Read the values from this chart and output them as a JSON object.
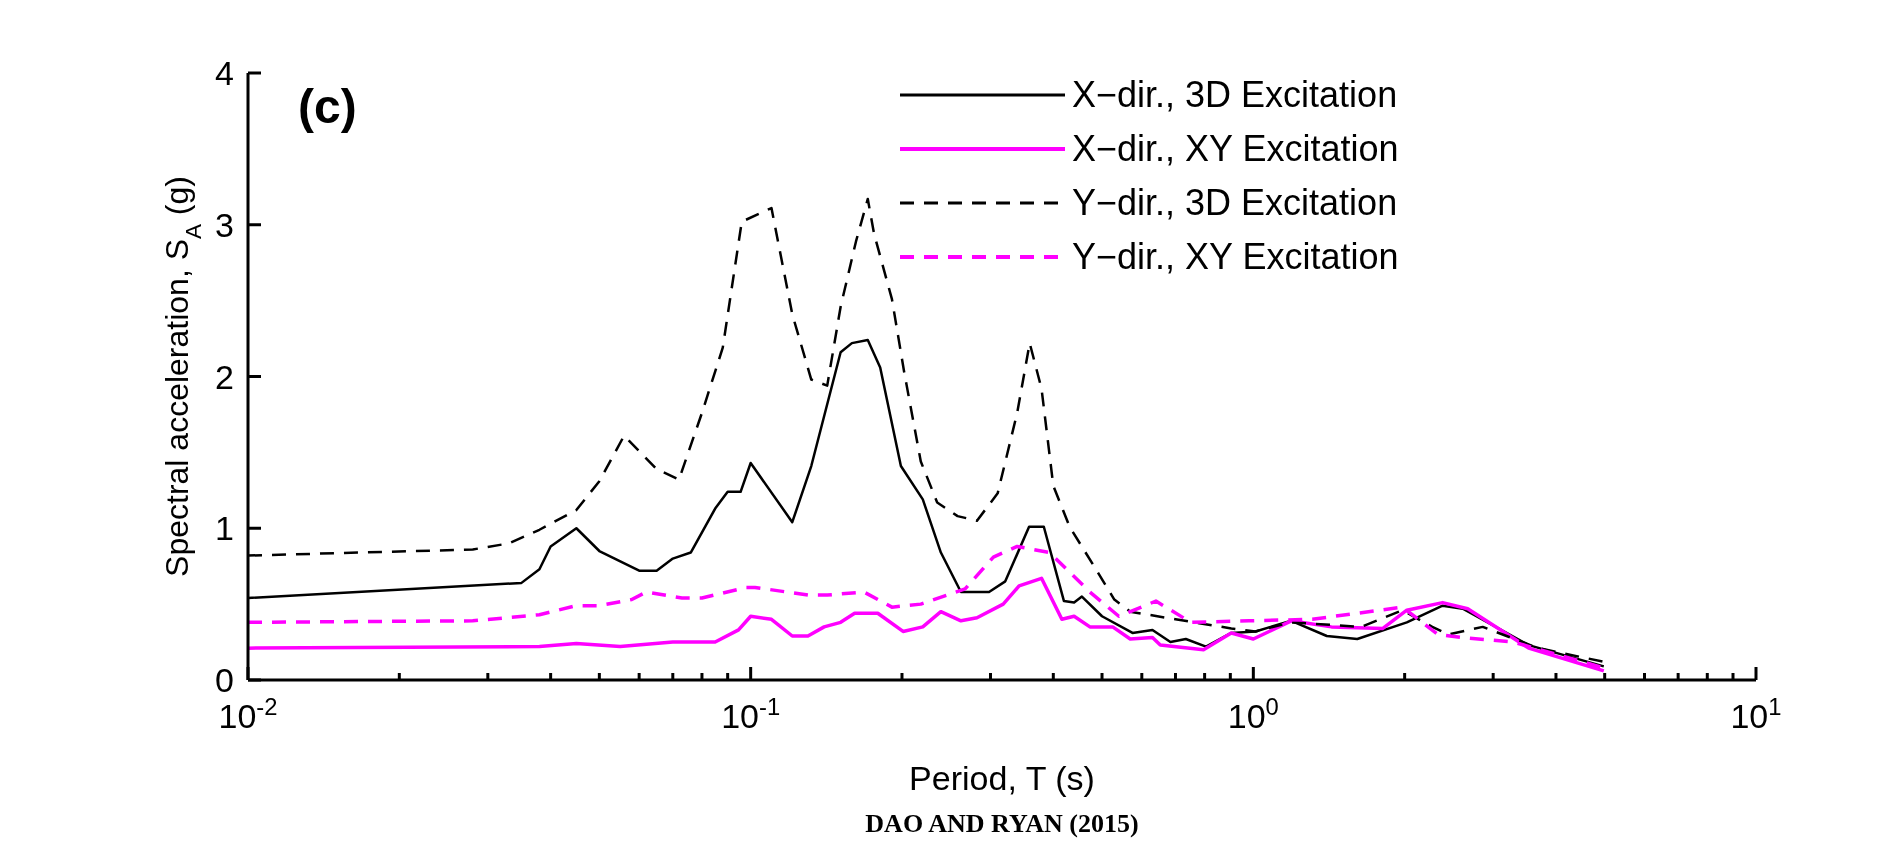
{
  "chart_data": {
    "type": "line",
    "xlabel": "Period, T (s)",
    "ylabel": "Spectral acceleration, S$_{A}$ (g)",
    "log": "x",
    "xlim": [
      0.01,
      10
    ],
    "xticks": [
      {
        "value": 0.01,
        "label": "10$^{-2}$"
      },
      {
        "value": 0.02,
        "label": null
      },
      {
        "value": 0.03,
        "label": null
      },
      {
        "value": 0.04,
        "label": null
      },
      {
        "value": 0.05,
        "label": null
      },
      {
        "value": 0.06,
        "label": null
      },
      {
        "value": 0.07,
        "label": null
      },
      {
        "value": 0.08,
        "label": null
      },
      {
        "value": 0.09,
        "label": null
      },
      {
        "value": 0.1,
        "label": "10$^{-1}$"
      },
      {
        "value": 0.2,
        "label": null
      },
      {
        "value": 0.3,
        "label": null
      },
      {
        "value": 0.4,
        "label": null
      },
      {
        "value": 0.5,
        "label": null
      },
      {
        "value": 0.6,
        "label": null
      },
      {
        "value": 0.7,
        "label": null
      },
      {
        "value": 0.8,
        "label": null
      },
      {
        "value": 0.9,
        "label": null
      },
      {
        "value": 1,
        "label": "10$^{0}$"
      },
      {
        "value": 2,
        "label": null
      },
      {
        "value": 3,
        "label": null
      },
      {
        "value": 4,
        "label": null
      },
      {
        "value": 5,
        "label": null
      },
      {
        "value": 6,
        "label": null
      },
      {
        "value": 7,
        "label": null
      },
      {
        "value": 8,
        "label": null
      },
      {
        "value": 9,
        "label": null
      },
      {
        "value": 10,
        "label": "10$^{1}$"
      }
    ],
    "ylim": [
      0,
      4
    ],
    "yticks": [
      0,
      1,
      2,
      3,
      4
    ],
    "grid": false,
    "legend": "top right",
    "annotations": [
      "(c)",
      "DAO AND RYAN (2015)"
    ],
    "series": [
      {
        "name": "X−dir., 3D Excitation",
        "color": "#000000",
        "line_style": "solid",
        "x": [
          0.01,
          0.035,
          0.038,
          0.04,
          0.045,
          0.05,
          0.06,
          0.065,
          0.07,
          0.076,
          0.085,
          0.09,
          0.0955,
          0.1,
          0.121,
          0.132,
          0.151,
          0.159,
          0.171,
          0.181,
          0.199,
          0.22,
          0.239,
          0.262,
          0.298,
          0.321,
          0.358,
          0.383,
          0.42,
          0.44,
          0.456,
          0.5,
          0.575,
          0.63,
          0.684,
          0.734,
          0.805,
          0.904,
          1.01,
          1.19,
          1.4,
          1.61,
          2.02,
          2.38,
          2.61,
          3.53,
          4.98
        ],
        "values": [
          0.54,
          0.64,
          0.73,
          0.88,
          1.0,
          0.85,
          0.72,
          0.72,
          0.8,
          0.84,
          1.13,
          1.24,
          1.24,
          1.43,
          1.04,
          1.41,
          2.16,
          2.22,
          2.24,
          2.06,
          1.41,
          1.19,
          0.84,
          0.58,
          0.58,
          0.65,
          1.01,
          1.01,
          0.52,
          0.51,
          0.55,
          0.42,
          0.31,
          0.33,
          0.25,
          0.27,
          0.22,
          0.31,
          0.32,
          0.39,
          0.29,
          0.27,
          0.38,
          0.49,
          0.47,
          0.23,
          0.09
        ]
      },
      {
        "name": "X−dir., XY Excitation",
        "color": "#ff00ff",
        "line_style": "solid",
        "x": [
          0.01,
          0.038,
          0.045,
          0.055,
          0.07,
          0.085,
          0.0946,
          0.1,
          0.11,
          0.121,
          0.13,
          0.14,
          0.151,
          0.161,
          0.179,
          0.201,
          0.22,
          0.239,
          0.262,
          0.282,
          0.318,
          0.342,
          0.379,
          0.416,
          0.44,
          0.473,
          0.525,
          0.569,
          0.63,
          0.653,
          0.796,
          0.904,
          1.0,
          1.19,
          1.43,
          1.81,
          2.02,
          2.38,
          2.67,
          3.53,
          4.98
        ],
        "values": [
          0.21,
          0.22,
          0.24,
          0.22,
          0.25,
          0.25,
          0.33,
          0.42,
          0.4,
          0.29,
          0.29,
          0.35,
          0.38,
          0.44,
          0.44,
          0.32,
          0.35,
          0.45,
          0.39,
          0.41,
          0.5,
          0.62,
          0.67,
          0.4,
          0.42,
          0.35,
          0.35,
          0.27,
          0.28,
          0.23,
          0.2,
          0.31,
          0.27,
          0.39,
          0.35,
          0.34,
          0.46,
          0.51,
          0.47,
          0.21,
          0.06
        ]
      },
      {
        "name": "Y−dir., 3D Excitation",
        "color": "#000000",
        "line_style": "dashed",
        "x": [
          0.01,
          0.028,
          0.033,
          0.038,
          0.045,
          0.05,
          0.056,
          0.065,
          0.072,
          0.08,
          0.088,
          0.096,
          0.11,
          0.121,
          0.132,
          0.142,
          0.151,
          0.162,
          0.171,
          0.176,
          0.191,
          0.202,
          0.218,
          0.235,
          0.258,
          0.282,
          0.31,
          0.339,
          0.359,
          0.379,
          0.4,
          0.431,
          0.482,
          0.529,
          0.569,
          0.7,
          0.904,
          1.01,
          1.19,
          1.64,
          1.98,
          2.27,
          2.44,
          2.86,
          3.69,
          4.98
        ],
        "values": [
          0.82,
          0.86,
          0.9,
          0.99,
          1.12,
          1.31,
          1.61,
          1.39,
          1.32,
          1.76,
          2.19,
          3.02,
          3.11,
          2.41,
          1.98,
          1.94,
          2.46,
          2.89,
          3.17,
          2.94,
          2.51,
          2.03,
          1.44,
          1.17,
          1.08,
          1.05,
          1.23,
          1.76,
          2.22,
          1.92,
          1.28,
          1.01,
          0.75,
          0.53,
          0.45,
          0.4,
          0.34,
          0.32,
          0.38,
          0.35,
          0.46,
          0.35,
          0.3,
          0.35,
          0.21,
          0.12
        ]
      },
      {
        "name": "Y−dir., XY Excitation",
        "color": "#ff00ff",
        "line_style": "dashed",
        "x": [
          0.01,
          0.028,
          0.038,
          0.045,
          0.05,
          0.058,
          0.062,
          0.073,
          0.08,
          0.098,
          0.102,
          0.13,
          0.142,
          0.168,
          0.191,
          0.218,
          0.267,
          0.304,
          0.339,
          0.393,
          0.473,
          0.54,
          0.64,
          0.751,
          0.98,
          1.31,
          1.98,
          2.33,
          2.61,
          3.29,
          4.98
        ],
        "values": [
          0.38,
          0.39,
          0.43,
          0.49,
          0.49,
          0.53,
          0.58,
          0.54,
          0.54,
          0.61,
          0.61,
          0.56,
          0.56,
          0.58,
          0.48,
          0.5,
          0.6,
          0.81,
          0.88,
          0.84,
          0.58,
          0.42,
          0.52,
          0.38,
          0.39,
          0.4,
          0.48,
          0.3,
          0.28,
          0.25,
          0.08
        ]
      }
    ]
  }
}
